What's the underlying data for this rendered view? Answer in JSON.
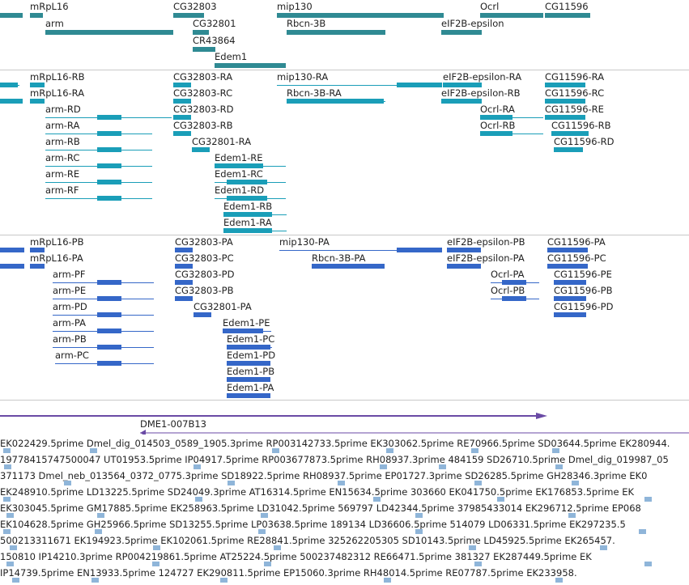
{
  "colors": {
    "gene": "#2f8a93",
    "transcript": "#1a9eb8",
    "protein": "#3567c8",
    "clone": "#6a4aa5",
    "est": "#8fb5d9",
    "separator": "#c8c8c8"
  },
  "genes": [
    {
      "label": "mRpL16"
    },
    {
      "label": "CG32803"
    },
    {
      "label": "mip130"
    },
    {
      "label": "Ocrl"
    },
    {
      "label": "CG11596"
    },
    {
      "label": "arm"
    },
    {
      "label": "CG32801"
    },
    {
      "label": "Rbcn-3B"
    },
    {
      "label": "eIF2B-epsilon"
    },
    {
      "label": "CR43864"
    },
    {
      "label": "Edem1"
    }
  ],
  "transcripts": [
    {
      "label": "mRpL16-RB"
    },
    {
      "label": "CG32803-RA"
    },
    {
      "label": "mip130-RA"
    },
    {
      "label": "eIF2B-epsilon-RA"
    },
    {
      "label": "CG11596-RA"
    },
    {
      "label": "mRpL16-RA"
    },
    {
      "label": "CG32803-RC"
    },
    {
      "label": "Rbcn-3B-RA"
    },
    {
      "label": "eIF2B-epsilon-RB"
    },
    {
      "label": "CG11596-RC"
    },
    {
      "label": "arm-RD"
    },
    {
      "label": "CG32803-RD"
    },
    {
      "label": "Ocrl-RA"
    },
    {
      "label": "CG11596-RE"
    },
    {
      "label": "arm-RA"
    },
    {
      "label": "CG32803-RB"
    },
    {
      "label": "Ocrl-RB"
    },
    {
      "label": "CG11596-RB"
    },
    {
      "label": "arm-RB"
    },
    {
      "label": "CG32801-RA"
    },
    {
      "label": "CG11596-RD"
    },
    {
      "label": "arm-RC"
    },
    {
      "label": "Edem1-RE"
    },
    {
      "label": "arm-RE"
    },
    {
      "label": "Edem1-RC"
    },
    {
      "label": "arm-RF"
    },
    {
      "label": "Edem1-RD"
    },
    {
      "label": "Edem1-RB"
    },
    {
      "label": "Edem1-RA"
    }
  ],
  "proteins": [
    {
      "label": "mRpL16-PB"
    },
    {
      "label": "CG32803-PA"
    },
    {
      "label": "mip130-PA"
    },
    {
      "label": "eIF2B-epsilon-PB"
    },
    {
      "label": "CG11596-PA"
    },
    {
      "label": "mRpL16-PA"
    },
    {
      "label": "CG32803-PC"
    },
    {
      "label": "Rbcn-3B-PA"
    },
    {
      "label": "eIF2B-epsilon-PA"
    },
    {
      "label": "CG11596-PC"
    },
    {
      "label": "arm-PF"
    },
    {
      "label": "CG32803-PD"
    },
    {
      "label": "Ocrl-PA"
    },
    {
      "label": "CG11596-PE"
    },
    {
      "label": "arm-PE"
    },
    {
      "label": "CG32803-PB"
    },
    {
      "label": "Ocrl-PB"
    },
    {
      "label": "CG11596-PB"
    },
    {
      "label": "arm-PD"
    },
    {
      "label": "CG32801-PA"
    },
    {
      "label": "CG11596-PD"
    },
    {
      "label": "arm-PA"
    },
    {
      "label": "Edem1-PE"
    },
    {
      "label": "arm-PB"
    },
    {
      "label": "Edem1-PC"
    },
    {
      "label": "arm-PC"
    },
    {
      "label": "Edem1-PD"
    },
    {
      "label": "Edem1-PB"
    },
    {
      "label": "Edem1-PA"
    }
  ],
  "clone": {
    "label": "DME1-007B13"
  },
  "est_rows": [
    "EK022429.5prime Dmel_dig_014503_0589_1905.3prime RP003142733.5prime EK303062.5prime RE70966.5prime SD03644.5prime EK280944.",
    "19778415747500047 UT01953.5prime IP04917.5prime RP003677873.5prime RH08937.3prime 484159 SD26710.5prime Dmel_dig_019987_05",
    "371173 Dmel_neb_013564_0372_0775.3prime SD18922.5prime RH08937.5prime EP01727.3prime SD26285.5prime GH28346.3prime EK0",
    "EK248910.5prime LD13225.5prime SD24049.3prime AT16314.5prime EN15634.5prime 303660 EK041750.5prime EK176853.5prime EK",
    "EK303045.5prime GM17885.5prime EK258963.5prime LD31042.5prime 569797 LD42344.5prime 37985433014 EK296712.5prime EP068",
    "EK104628.5prime GH25966.5prime SD13255.5prime LP03638.5prime 189134 LD36606.5prime 514079 LD06331.5prime EK297235.5",
    "500213311671 EK194923.5prime EK102061.5prime RE28841.5prime 325262205305 SD10143.5prime LD45925.5prime EK265457.",
    "150810 IP14210.3prime RP004219861.5prime AT25224.5prime 500237482312 RE66471.5prime 381327 EK287449.5prime EK",
    "IP14739.5prime EN13933.5prime 124727 EK290811.5prime EP15060.3prime RH48014.5prime RE07787.5prime EK233958."
  ]
}
